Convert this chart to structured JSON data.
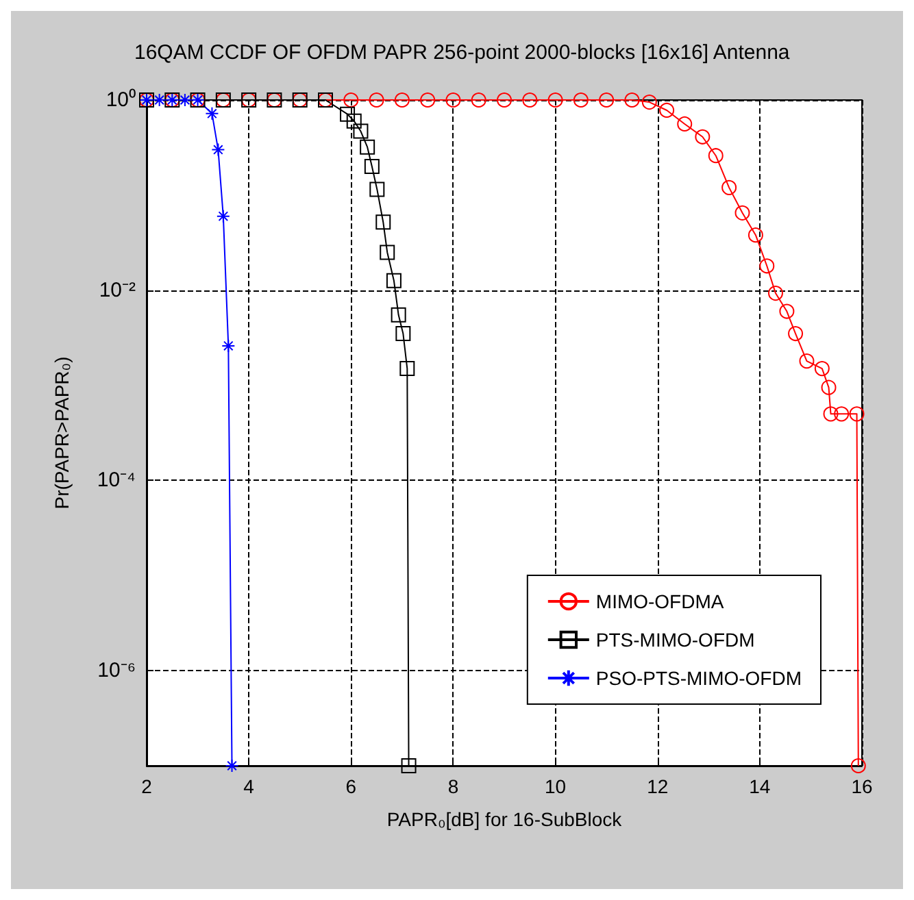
{
  "chart_data": {
    "type": "line",
    "title": "16QAM CCDF OF OFDM PAPR 256-point 2000-blocks [16x16] Antenna",
    "xlabel": "PAPR₀[dB] for 16-SubBlock",
    "ylabel": "Pr(PAPR>PAPR₀)",
    "log": "y",
    "grid": true,
    "legend": "bottom right",
    "line_style": "solid",
    "xlim": [
      2,
      16
    ],
    "xticks": [
      2,
      4,
      6,
      8,
      10,
      12,
      14,
      16
    ],
    "ylim": [
      1e-07,
      1
    ],
    "yticks": [
      {
        "value": 1,
        "label": "10⁰"
      },
      {
        "value": 0.01,
        "label": "10⁻²"
      },
      {
        "value": 0.0001,
        "label": "10⁻⁴"
      },
      {
        "value": 1e-06,
        "label": "10⁻⁶"
      }
    ],
    "series": [
      {
        "name": "MIMO-OFDMA",
        "color": "#ff0000",
        "marker": "circle",
        "x": [
          2,
          2.5,
          3,
          3.5,
          4,
          4.5,
          5,
          5.5,
          6,
          6.5,
          7,
          7.5,
          8,
          8.5,
          9,
          9.5,
          10,
          10.5,
          11,
          11.5,
          11.84,
          12.18,
          12.53,
          12.88,
          13.14,
          13.4,
          13.66,
          13.92,
          14.14,
          14.31,
          14.53,
          14.7,
          14.92,
          15.22,
          15.35,
          15.39,
          15.6,
          15.9,
          15.93
        ],
        "values": [
          1,
          1,
          1,
          1,
          1,
          1,
          1,
          1,
          1,
          1,
          1,
          1,
          1,
          1,
          1,
          1,
          1,
          1,
          1,
          1,
          0.95,
          0.78,
          0.56,
          0.41,
          0.26,
          0.12,
          0.065,
          0.038,
          0.018,
          0.0093,
          0.006,
          0.0035,
          0.0018,
          0.0015,
          0.00095,
          0.0005,
          0.0005,
          0.0005,
          1e-07
        ]
      },
      {
        "name": "PTS-MIMO-OFDM",
        "color": "#000000",
        "marker": "square",
        "x": [
          2,
          2.5,
          3,
          3.5,
          4,
          4.5,
          5,
          5.5,
          5.93,
          6.06,
          6.19,
          6.32,
          6.41,
          6.51,
          6.63,
          6.71,
          6.84,
          6.93,
          7.02,
          7.1,
          7.13
        ],
        "values": [
          1,
          1,
          1,
          1,
          1,
          1,
          1,
          1,
          0.71,
          0.6,
          0.47,
          0.32,
          0.2,
          0.115,
          0.052,
          0.025,
          0.0126,
          0.0055,
          0.0035,
          0.0015,
          1e-07
        ]
      },
      {
        "name": "PSO-PTS-MIMO-OFDM",
        "color": "#0000ff",
        "marker": "cross",
        "x": [
          2,
          2.25,
          2.5,
          2.75,
          3,
          3.28,
          3.4,
          3.5,
          3.6,
          3.67
        ],
        "values": [
          1,
          1,
          1,
          1,
          1,
          0.72,
          0.3,
          0.06,
          0.0026,
          1e-07
        ]
      }
    ]
  }
}
